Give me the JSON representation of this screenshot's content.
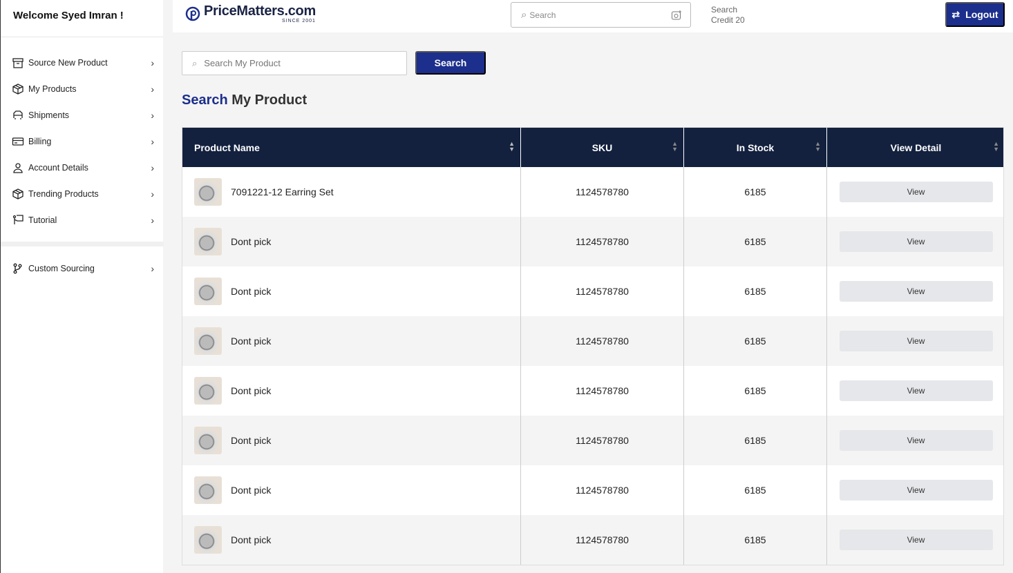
{
  "sidebar": {
    "welcome": "Welcome Syed Imran !",
    "items": [
      {
        "label": "Source New Product",
        "icon": "archive-icon"
      },
      {
        "label": "My Products",
        "icon": "box-icon"
      },
      {
        "label": "Shipments",
        "icon": "truck-icon"
      },
      {
        "label": "Billing",
        "icon": "credit-card-icon"
      },
      {
        "label": "Account Details",
        "icon": "user-icon"
      },
      {
        "label": "Trending Products",
        "icon": "box-icon"
      },
      {
        "label": "Tutorial",
        "icon": "presentation-icon"
      }
    ],
    "custom": {
      "label": "Custom Sourcing",
      "icon": "git-branch-icon"
    }
  },
  "header": {
    "logo": "PriceMatters.com",
    "since": "SINCE 2001",
    "search_placeholder": "Search",
    "credit_label": "Search",
    "credit_value": "Credit 20",
    "logout": "Logout"
  },
  "main": {
    "search_placeholder": "Search My Product",
    "search_button": "Search",
    "heading_hl": "Search",
    "heading_rest": "My Product"
  },
  "table": {
    "columns": [
      "Product Name",
      "SKU",
      "In Stock",
      "View Detail"
    ],
    "rows": [
      {
        "name": "7091221-12 Earring Set",
        "sku": "1124578780",
        "stock": "6185",
        "action": "View"
      },
      {
        "name": "Dont pick",
        "sku": "1124578780",
        "stock": "6185",
        "action": "View"
      },
      {
        "name": "Dont pick",
        "sku": "1124578780",
        "stock": "6185",
        "action": "View"
      },
      {
        "name": "Dont pick",
        "sku": "1124578780",
        "stock": "6185",
        "action": "View"
      },
      {
        "name": "Dont pick",
        "sku": "1124578780",
        "stock": "6185",
        "action": "View"
      },
      {
        "name": "Dont pick",
        "sku": "1124578780",
        "stock": "6185",
        "action": "View"
      },
      {
        "name": "Dont pick",
        "sku": "1124578780",
        "stock": "6185",
        "action": "View"
      },
      {
        "name": "Dont pick",
        "sku": "1124578780",
        "stock": "6185",
        "action": "View"
      }
    ]
  },
  "colors": {
    "accent": "#1c2f8c",
    "table_header": "#13213f"
  }
}
